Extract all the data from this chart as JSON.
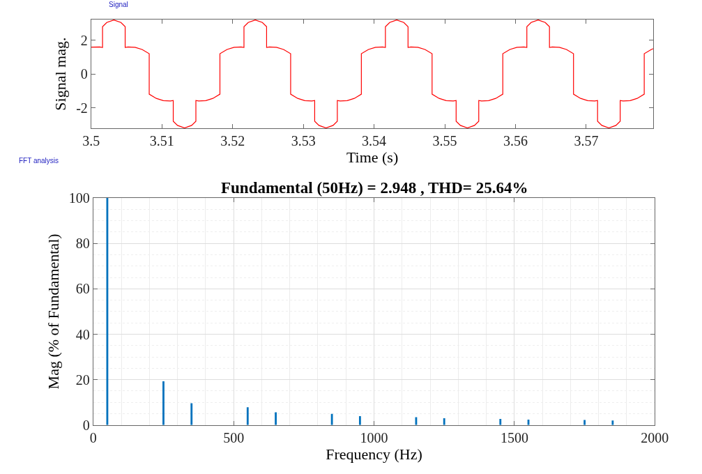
{
  "chart_data": [
    {
      "type": "line",
      "annotations": [
        "Signal"
      ],
      "xlabel": "Time (s)",
      "ylabel": "Signal mag.",
      "xlim": [
        3.5,
        3.5795
      ],
      "ylim": [
        -3.22,
        3.22
      ],
      "xticks": [
        3.5,
        3.51,
        3.52,
        3.53,
        3.54,
        3.55,
        3.56,
        3.57
      ],
      "yticks": [
        -2,
        0,
        2
      ],
      "grid": false,
      "series": [
        {
          "color": "#ff0000",
          "x": [
            3.5,
            3.5012,
            3.5016,
            3.5016,
            3.5022,
            3.5032,
            3.5042,
            3.5048,
            3.5048,
            3.5052,
            3.5062,
            3.5072,
            3.5082,
            3.5082,
            3.5092,
            3.5102,
            3.5112,
            3.5116,
            3.5116,
            3.5122,
            3.5132,
            3.5142,
            3.5148,
            3.5148,
            3.5152,
            3.5162,
            3.5172,
            3.5182,
            3.5182,
            3.5192,
            3.5202,
            3.5212,
            3.5216,
            3.5216,
            3.5222,
            3.5232,
            3.5242,
            3.5248,
            3.5248,
            3.5252,
            3.5262,
            3.5272,
            3.5282,
            3.5282,
            3.5292,
            3.5302,
            3.5312,
            3.5316,
            3.5316,
            3.5322,
            3.5332,
            3.5342,
            3.5348,
            3.5348,
            3.5352,
            3.5362,
            3.5372,
            3.5382,
            3.5382,
            3.5392,
            3.5402,
            3.5412,
            3.5416,
            3.5416,
            3.5422,
            3.5432,
            3.5442,
            3.5448,
            3.5448,
            3.5452,
            3.5462,
            3.5472,
            3.5482,
            3.5482,
            3.5492,
            3.5502,
            3.5512,
            3.5516,
            3.5516,
            3.5522,
            3.5532,
            3.5542,
            3.5548,
            3.5548,
            3.5552,
            3.5562,
            3.5572,
            3.5582,
            3.5582,
            3.5592,
            3.5602,
            3.5612,
            3.5616,
            3.5616,
            3.5622,
            3.5632,
            3.5642,
            3.5648,
            3.5648,
            3.5652,
            3.5662,
            3.5672,
            3.5682,
            3.5682,
            3.5692,
            3.5702,
            3.5712,
            3.5716,
            3.5716,
            3.5722,
            3.5732,
            3.5742,
            3.5748,
            3.5748,
            3.5752,
            3.5762,
            3.5772,
            3.5782,
            3.5782,
            3.5792,
            3.5795
          ],
          "values": [
            1.59,
            1.6,
            1.57,
            2.8,
            3.05,
            3.2,
            3.05,
            2.8,
            1.57,
            1.6,
            1.58,
            1.45,
            1.2,
            -1.2,
            -1.45,
            -1.58,
            -1.6,
            -1.57,
            -2.8,
            -3.05,
            -3.2,
            -3.05,
            -2.8,
            -1.57,
            -1.6,
            -1.58,
            -1.45,
            -1.2,
            1.2,
            1.45,
            1.58,
            1.6,
            1.57,
            2.8,
            3.05,
            3.2,
            3.05,
            2.8,
            1.57,
            1.6,
            1.58,
            1.45,
            1.2,
            -1.2,
            -1.45,
            -1.58,
            -1.6,
            -1.57,
            -2.8,
            -3.05,
            -3.2,
            -3.05,
            -2.8,
            -1.57,
            -1.6,
            -1.58,
            -1.45,
            -1.2,
            1.2,
            1.45,
            1.58,
            1.6,
            1.57,
            2.8,
            3.05,
            3.2,
            3.05,
            2.8,
            1.57,
            1.6,
            1.58,
            1.45,
            1.2,
            -1.2,
            -1.45,
            -1.58,
            -1.6,
            -1.57,
            -2.8,
            -3.05,
            -3.2,
            -3.05,
            -2.8,
            -1.57,
            -1.6,
            -1.58,
            -1.45,
            -1.2,
            1.2,
            1.45,
            1.58,
            1.6,
            1.57,
            2.8,
            3.05,
            3.2,
            3.05,
            2.8,
            1.57,
            1.6,
            1.58,
            1.45,
            1.2,
            -1.2,
            -1.45,
            -1.58,
            -1.6,
            -1.57,
            -2.8,
            -3.05,
            -3.2,
            -3.05,
            -2.8,
            -1.57,
            -1.6,
            -1.58,
            -1.45,
            -1.2,
            1.2,
            1.45,
            1.5
          ]
        }
      ]
    },
    {
      "type": "bar",
      "annotations": [
        "FFT analysis"
      ],
      "title": "Fundamental (50Hz) = 2.948 , THD= 25.64%",
      "xlabel": "Frequency (Hz)",
      "ylabel": "Mag (% of Fundamental)",
      "xlim": [
        0,
        2000
      ],
      "ylim": [
        0,
        100
      ],
      "xticks": [
        0,
        500,
        1000,
        1500,
        2000
      ],
      "yticks": [
        0,
        20,
        40,
        60,
        80,
        100
      ],
      "grid": true,
      "x": [
        50,
        250,
        350,
        550,
        650,
        850,
        950,
        1150,
        1250,
        1450,
        1550,
        1750,
        1850
      ],
      "series": [
        {
          "color": "#0072bd",
          "values": [
            100,
            19.3,
            9.6,
            7.8,
            5.6,
            4.9,
            3.9,
            3.5,
            3.0,
            2.7,
            2.4,
            2.2,
            2.0
          ]
        }
      ]
    }
  ]
}
